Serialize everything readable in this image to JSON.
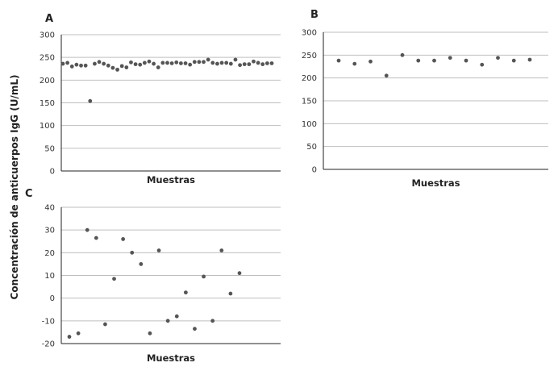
{
  "ylabel": "Concentración de anticuerpos IgG (U/mL)",
  "colors": {
    "point": "#555555",
    "grid": "#bfbfbf",
    "axis": "#222222"
  },
  "chart_data": [
    {
      "panel": "A",
      "type": "scatter",
      "xlabel": "Muestras",
      "ylim": [
        0,
        300
      ],
      "yticks": [
        0,
        50,
        100,
        150,
        200,
        250,
        300
      ],
      "grid": true,
      "y": [
        236,
        238,
        230,
        234,
        232,
        232,
        154,
        236,
        240,
        236,
        232,
        227,
        223,
        231,
        228,
        239,
        235,
        234,
        238,
        241,
        236,
        228,
        238,
        238,
        237,
        239,
        237,
        237,
        234,
        240,
        240,
        240,
        245,
        238,
        236,
        238,
        238,
        236,
        245,
        233,
        235,
        235,
        241,
        238,
        235,
        237,
        237
      ]
    },
    {
      "panel": "B",
      "type": "scatter",
      "xlabel": "Muestras",
      "ylim": [
        0,
        300
      ],
      "yticks": [
        0,
        50,
        100,
        150,
        200,
        250,
        300
      ],
      "grid": true,
      "y": [
        238,
        231,
        236,
        205,
        250,
        238,
        238,
        244,
        238,
        229,
        244,
        238,
        240
      ]
    },
    {
      "panel": "C",
      "type": "scatter",
      "xlabel": "Muestras",
      "ylim": [
        -20,
        40
      ],
      "yticks": [
        -20,
        -10,
        0,
        10,
        20,
        30,
        40
      ],
      "grid": true,
      "y": [
        -17,
        -15.5,
        30,
        26.5,
        -11.5,
        8.5,
        26,
        20,
        15,
        -15.5,
        21,
        -10,
        -8,
        2.5,
        -13.5,
        9.5,
        -10,
        21,
        2,
        11
      ]
    }
  ]
}
